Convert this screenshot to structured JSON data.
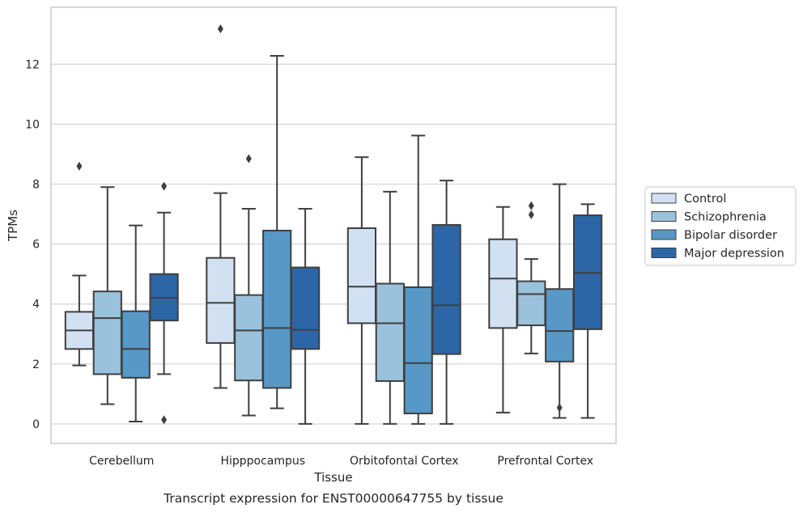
{
  "chart_data": {
    "type": "box",
    "caption": "Transcript expression for ENST00000647755 by tissue",
    "xlabel": "Tissue",
    "ylabel": "TPMs",
    "ylim": [
      -0.65,
      13.9
    ],
    "yticks": [
      0,
      2,
      4,
      6,
      8,
      10,
      12
    ],
    "grid": "horizontal",
    "legend_position": "right",
    "categories": [
      "Cerebellum",
      "Hipppocampus",
      "Orbitofontal Cortex",
      "Prefrontal Cortex"
    ],
    "series": [
      {
        "name": "Control",
        "color": "#d1e1f1",
        "boxes": [
          {
            "whislo": 1.95,
            "q1": 2.5,
            "med": 3.12,
            "q3": 3.74,
            "whishi": 4.95,
            "fliers": [
              8.6
            ]
          },
          {
            "whislo": 1.2,
            "q1": 2.7,
            "med": 4.04,
            "q3": 5.54,
            "whishi": 7.7,
            "fliers": [
              13.18
            ]
          },
          {
            "whislo": 0.0,
            "q1": 3.36,
            "med": 4.58,
            "q3": 6.53,
            "whishi": 8.9,
            "fliers": []
          },
          {
            "whislo": 0.38,
            "q1": 3.2,
            "med": 4.85,
            "q3": 6.16,
            "whishi": 7.24,
            "fliers": []
          }
        ]
      },
      {
        "name": "Schizophrenia",
        "color": "#9bc2dc",
        "boxes": [
          {
            "whislo": 0.66,
            "q1": 1.66,
            "med": 3.53,
            "q3": 4.42,
            "whishi": 7.9,
            "fliers": []
          },
          {
            "whislo": 0.28,
            "q1": 1.45,
            "med": 3.12,
            "q3": 4.3,
            "whishi": 7.18,
            "fliers": [
              8.85
            ]
          },
          {
            "whislo": 0.0,
            "q1": 1.43,
            "med": 3.36,
            "q3": 4.68,
            "whishi": 7.75,
            "fliers": []
          },
          {
            "whislo": 2.35,
            "q1": 3.29,
            "med": 4.33,
            "q3": 4.76,
            "whishi": 5.5,
            "fliers": [
              6.98,
              7.28
            ]
          }
        ]
      },
      {
        "name": "Bipolar disorder",
        "color": "#5798c6",
        "boxes": [
          {
            "whislo": 0.08,
            "q1": 1.54,
            "med": 2.5,
            "q3": 3.76,
            "whishi": 6.62,
            "fliers": []
          },
          {
            "whislo": 0.52,
            "q1": 1.2,
            "med": 3.2,
            "q3": 6.45,
            "whishi": 12.28,
            "fliers": []
          },
          {
            "whislo": 0.0,
            "q1": 0.35,
            "med": 2.03,
            "q3": 4.56,
            "whishi": 9.62,
            "fliers": []
          },
          {
            "whislo": 0.2,
            "q1": 2.08,
            "med": 3.1,
            "q3": 4.5,
            "whishi": 8.0,
            "fliers": [
              0.54
            ]
          }
        ]
      },
      {
        "name": "Major depression",
        "color": "#2c66a6",
        "boxes": [
          {
            "whislo": 1.66,
            "q1": 3.45,
            "med": 4.21,
            "q3": 5.0,
            "whishi": 7.05,
            "fliers": [
              7.93,
              0.14
            ]
          },
          {
            "whislo": 0.0,
            "q1": 2.5,
            "med": 3.14,
            "q3": 5.22,
            "whishi": 7.18,
            "fliers": []
          },
          {
            "whislo": 0.0,
            "q1": 2.33,
            "med": 3.96,
            "q3": 6.64,
            "whishi": 8.12,
            "fliers": []
          },
          {
            "whislo": 0.2,
            "q1": 3.16,
            "med": 5.04,
            "q3": 6.96,
            "whishi": 7.33,
            "fliers": []
          }
        ]
      }
    ]
  }
}
